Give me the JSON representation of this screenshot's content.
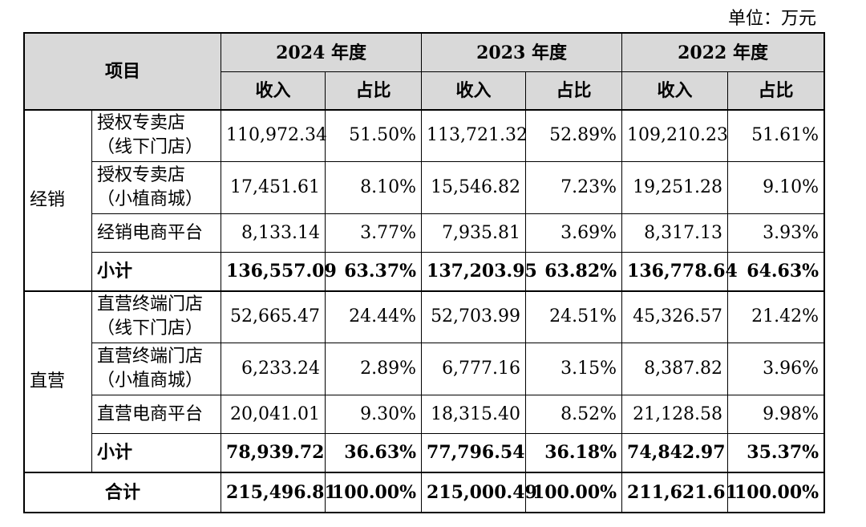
{
  "unit_label": "单位：万元",
  "header": {
    "item_label": "项目",
    "years": [
      "2024 年度",
      "2023 年度",
      "2022 年度"
    ],
    "revenue_label": "收入",
    "ratio_label": "占比"
  },
  "groups": [
    {
      "category": "经销",
      "rows": [
        {
          "name1": "授权专卖店",
          "name2": "（线下门店）",
          "values": [
            "110,972.34",
            "51.50%",
            "113,721.32",
            "52.89%",
            "109,210.23",
            "51.61%"
          ]
        },
        {
          "name1": "授权专卖店",
          "name2": "（小植商城）",
          "values": [
            "17,451.61",
            "8.10%",
            "15,546.82",
            "7.23%",
            "19,251.28",
            "9.10%"
          ]
        },
        {
          "name1": "经销电商平台",
          "name2": "",
          "values": [
            "8,133.14",
            "3.77%",
            "7,935.81",
            "3.69%",
            "8,317.13",
            "3.93%"
          ]
        }
      ],
      "subtotal": {
        "label": "小计",
        "values": [
          "136,557.09",
          "63.37%",
          "137,203.95",
          "63.82%",
          "136,778.64",
          "64.63%"
        ]
      }
    },
    {
      "category": "直营",
      "rows": [
        {
          "name1": "直营终端门店",
          "name2": "（线下门店）",
          "values": [
            "52,665.47",
            "24.44%",
            "52,703.99",
            "24.51%",
            "45,326.57",
            "21.42%"
          ]
        },
        {
          "name1": "直营终端门店",
          "name2": "（小植商城）",
          "values": [
            "6,233.24",
            "2.89%",
            "6,777.16",
            "3.15%",
            "8,387.82",
            "3.96%"
          ]
        },
        {
          "name1": "直营电商平台",
          "name2": "",
          "values": [
            "20,041.01",
            "9.30%",
            "18,315.40",
            "8.52%",
            "21,128.58",
            "9.98%"
          ]
        }
      ],
      "subtotal": {
        "label": "小计",
        "values": [
          "78,939.72",
          "36.63%",
          "77,796.54",
          "36.18%",
          "74,842.97",
          "35.37%"
        ]
      }
    }
  ],
  "total": {
    "label": "合计",
    "values": [
      "215,496.81",
      "100.00%",
      "215,000.49",
      "100.00%",
      "211,621.61",
      "100.00%"
    ]
  }
}
